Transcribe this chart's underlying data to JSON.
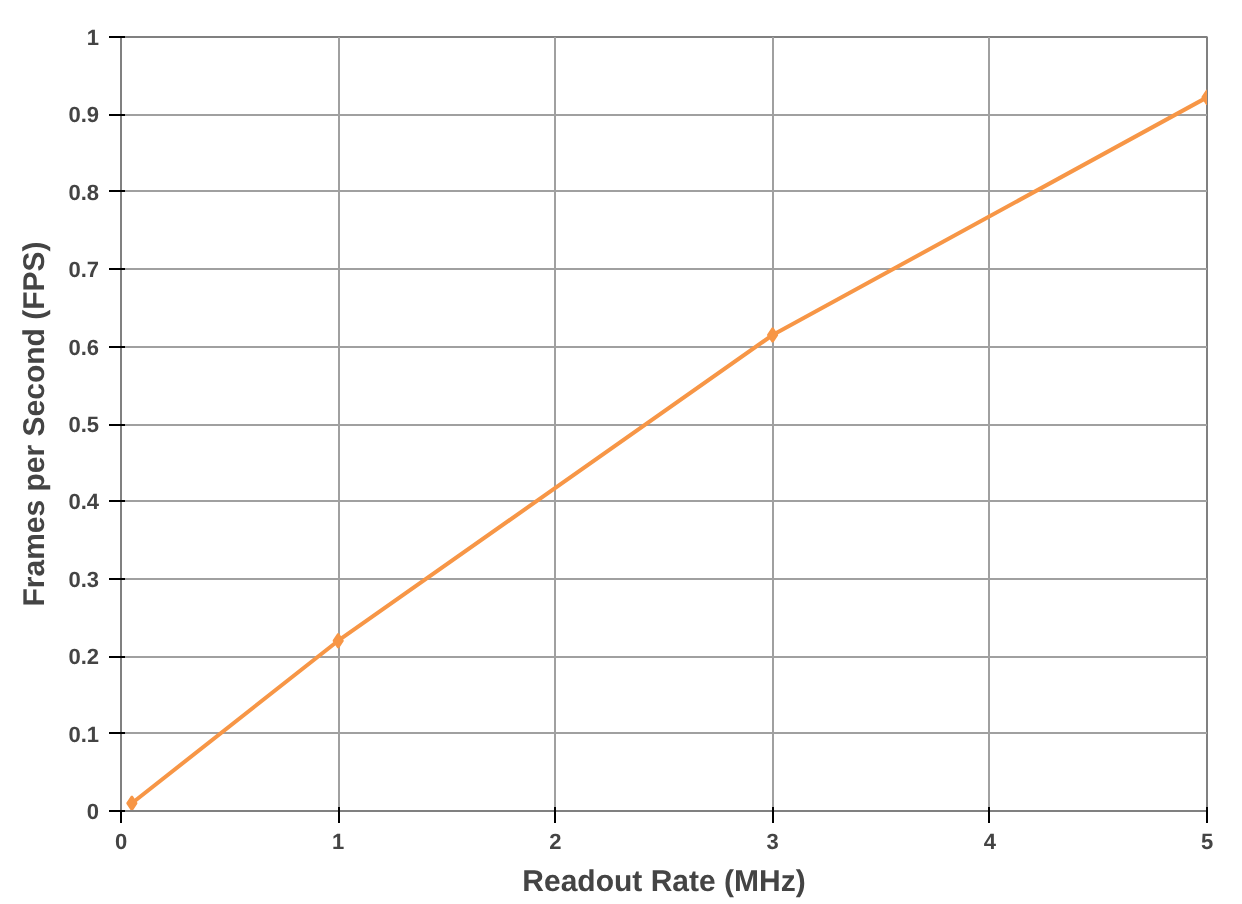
{
  "chart_data": {
    "type": "line",
    "xlabel": "Readout Rate (MHz)",
    "ylabel": "Frames per Second (FPS)",
    "x": [
      0.05,
      1,
      3,
      5
    ],
    "series": [
      {
        "color": "#f79646",
        "values": [
          0.01,
          0.22,
          0.615,
          0.922
        ]
      }
    ],
    "xlim": [
      0,
      5
    ],
    "xticks": [
      0,
      1,
      2,
      3,
      4,
      5
    ],
    "ylim": [
      0,
      1
    ],
    "yticks": [
      0,
      0.1,
      0.2,
      0.3,
      0.4,
      0.5,
      0.6,
      0.7,
      0.8,
      0.9,
      1
    ],
    "grid": true,
    "marker": "diamond",
    "line_style": "solid"
  }
}
